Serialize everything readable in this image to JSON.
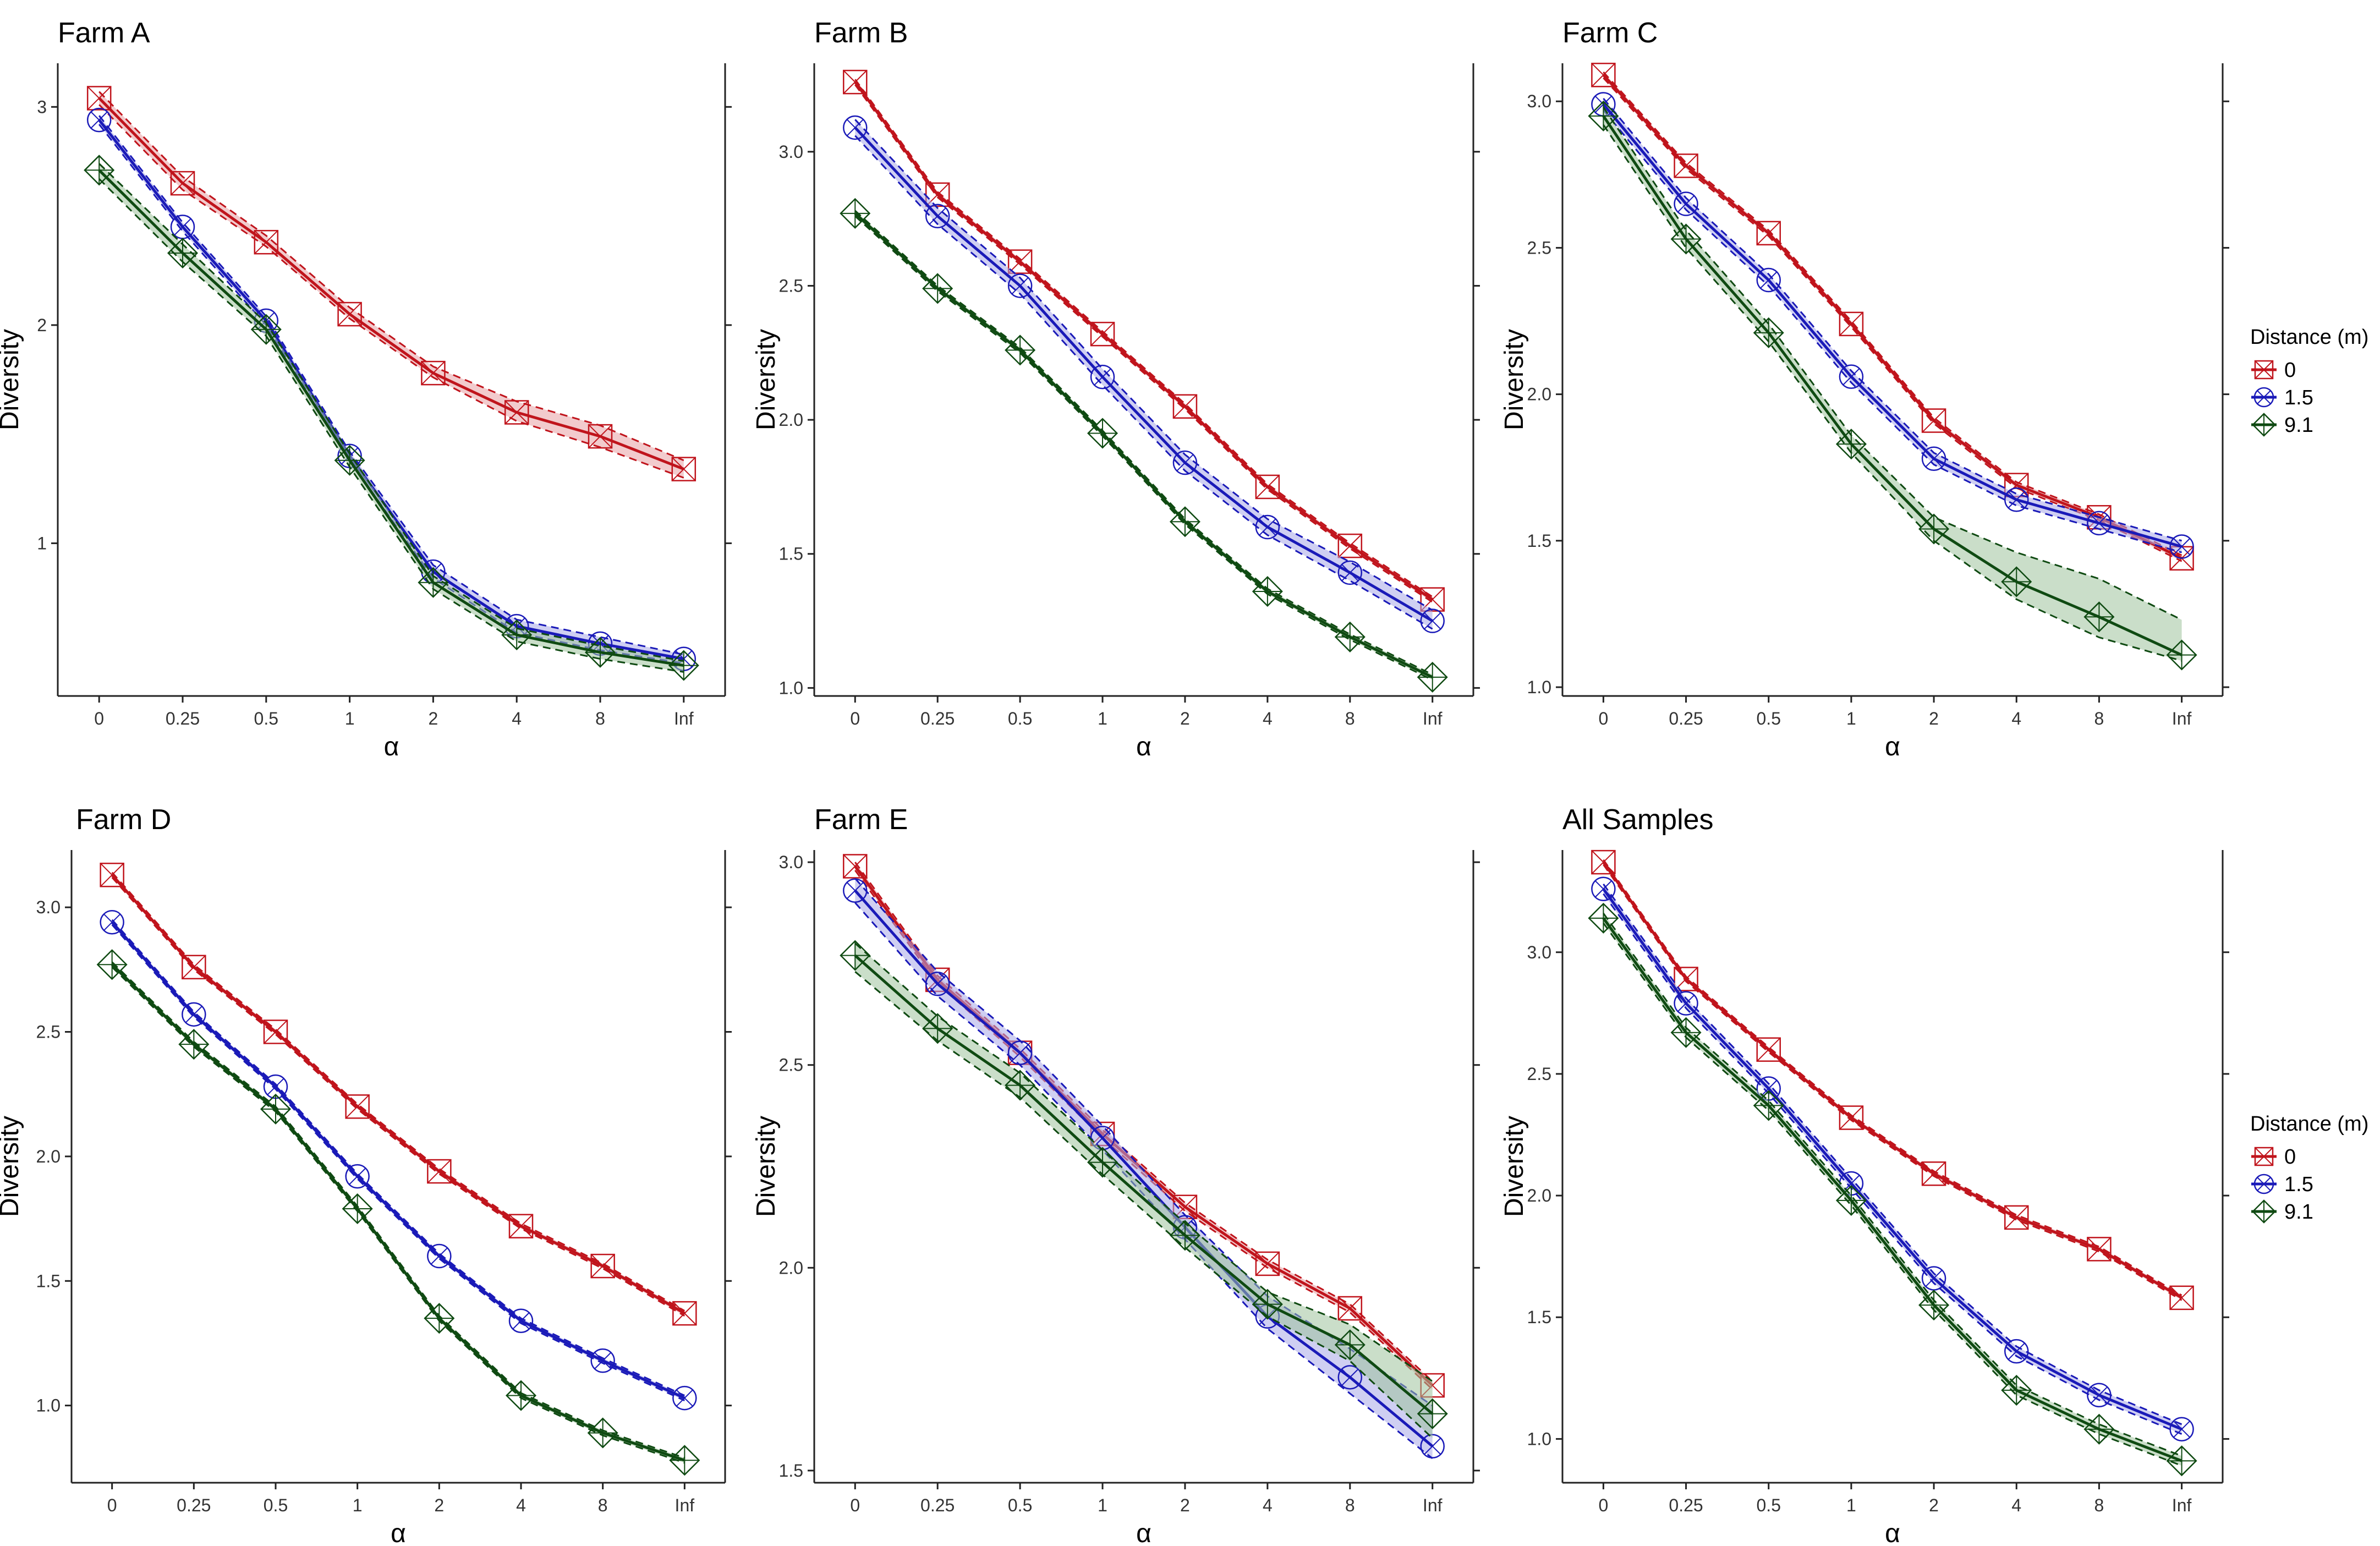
{
  "colors": {
    "d0": "#c0141c",
    "d15": "#1a1ab8",
    "d91": "#0f4a12",
    "d0_fill": "#e8a0a4",
    "d15_fill": "#a8a8e8",
    "d91_fill": "#9ec39c"
  },
  "legend": {
    "title": "Distance (m)",
    "entries": [
      "0",
      "1.5",
      "9.1"
    ]
  },
  "chart_data": [
    {
      "type": "line",
      "title": "Farm A",
      "xlabel": "α",
      "ylabel": "Diversity",
      "categories": [
        "0",
        "0.25",
        "0.5",
        "1",
        "2",
        "4",
        "8",
        "Inf"
      ],
      "ylim": [
        0.3,
        3.2
      ],
      "yticks": [
        "1",
        "2",
        "3"
      ],
      "ytick_values": [
        1,
        2,
        3
      ],
      "series": [
        {
          "name": "0",
          "values": [
            3.04,
            2.65,
            2.38,
            2.05,
            1.78,
            1.6,
            1.49,
            1.34
          ],
          "lower": [
            3.01,
            2.62,
            2.36,
            2.03,
            1.76,
            1.56,
            1.44,
            1.3
          ],
          "upper": [
            3.07,
            2.68,
            2.41,
            2.08,
            1.81,
            1.65,
            1.54,
            1.38
          ]
        },
        {
          "name": "1.5",
          "values": [
            2.94,
            2.45,
            2.02,
            1.4,
            0.87,
            0.62,
            0.54,
            0.47
          ],
          "lower": [
            2.92,
            2.43,
            2.0,
            1.38,
            0.84,
            0.59,
            0.51,
            0.45
          ],
          "upper": [
            2.96,
            2.47,
            2.04,
            1.42,
            0.9,
            0.65,
            0.57,
            0.49
          ]
        },
        {
          "name": "9.1",
          "values": [
            2.71,
            2.33,
            1.98,
            1.38,
            0.82,
            0.58,
            0.5,
            0.44
          ],
          "lower": [
            2.67,
            2.29,
            1.95,
            1.35,
            0.79,
            0.55,
            0.47,
            0.41
          ],
          "upper": [
            2.74,
            2.37,
            2.01,
            1.41,
            0.85,
            0.61,
            0.53,
            0.46
          ]
        }
      ]
    },
    {
      "type": "line",
      "title": "Farm B",
      "xlabel": "α",
      "ylabel": "Diversity",
      "categories": [
        "0",
        "0.25",
        "0.5",
        "1",
        "2",
        "4",
        "8",
        "Inf"
      ],
      "ylim": [
        0.97,
        3.33
      ],
      "yticks": [
        "1.0",
        "1.5",
        "2.0",
        "2.5",
        "3.0"
      ],
      "ytick_values": [
        1.0,
        1.5,
        2.0,
        2.5,
        3.0
      ],
      "series": [
        {
          "name": "0",
          "values": [
            3.26,
            2.84,
            2.59,
            2.32,
            2.05,
            1.75,
            1.53,
            1.33
          ],
          "lower": [
            3.25,
            2.83,
            2.58,
            2.31,
            2.04,
            1.74,
            1.52,
            1.32
          ],
          "upper": [
            3.27,
            2.85,
            2.6,
            2.33,
            2.06,
            1.76,
            1.54,
            1.34
          ]
        },
        {
          "name": "1.5",
          "values": [
            3.09,
            2.76,
            2.5,
            2.16,
            1.84,
            1.6,
            1.43,
            1.25
          ],
          "lower": [
            3.06,
            2.73,
            2.47,
            2.13,
            1.81,
            1.57,
            1.4,
            1.22
          ],
          "upper": [
            3.12,
            2.79,
            2.53,
            2.19,
            1.87,
            1.63,
            1.47,
            1.29
          ]
        },
        {
          "name": "9.1",
          "values": [
            2.77,
            2.49,
            2.26,
            1.95,
            1.62,
            1.36,
            1.19,
            1.04
          ],
          "lower": [
            2.76,
            2.48,
            2.25,
            1.94,
            1.61,
            1.35,
            1.18,
            1.03
          ],
          "upper": [
            2.78,
            2.5,
            2.27,
            1.96,
            1.63,
            1.37,
            1.2,
            1.05
          ]
        }
      ]
    },
    {
      "type": "line",
      "title": "Farm C",
      "xlabel": "α",
      "ylabel": "Diversity",
      "categories": [
        "0",
        "0.25",
        "0.5",
        "1",
        "2",
        "4",
        "8",
        "Inf"
      ],
      "ylim": [
        0.97,
        3.13
      ],
      "yticks": [
        "1.0",
        "1.5",
        "2.0",
        "2.5",
        "3.0"
      ],
      "ytick_values": [
        1.0,
        1.5,
        2.0,
        2.5,
        3.0
      ],
      "series": [
        {
          "name": "0",
          "values": [
            3.09,
            2.78,
            2.55,
            2.24,
            1.91,
            1.69,
            1.58,
            1.44
          ],
          "lower": [
            3.08,
            2.77,
            2.54,
            2.23,
            1.9,
            1.68,
            1.57,
            1.43
          ],
          "upper": [
            3.1,
            2.79,
            2.56,
            2.25,
            1.92,
            1.7,
            1.59,
            1.45
          ]
        },
        {
          "name": "1.5",
          "values": [
            2.99,
            2.65,
            2.39,
            2.06,
            1.78,
            1.64,
            1.56,
            1.48
          ],
          "lower": [
            2.97,
            2.63,
            2.37,
            2.04,
            1.76,
            1.62,
            1.54,
            1.46
          ],
          "upper": [
            3.01,
            2.67,
            2.41,
            2.08,
            1.8,
            1.66,
            1.58,
            1.5
          ]
        },
        {
          "name": "9.1",
          "values": [
            2.95,
            2.53,
            2.21,
            1.83,
            1.54,
            1.36,
            1.24,
            1.11
          ],
          "lower": [
            2.92,
            2.5,
            2.18,
            1.8,
            1.5,
            1.3,
            1.17,
            1.09
          ],
          "upper": [
            2.98,
            2.56,
            2.24,
            1.86,
            1.58,
            1.46,
            1.37,
            1.23
          ]
        }
      ]
    },
    {
      "type": "line",
      "title": "Farm D",
      "xlabel": "α",
      "ylabel": "Diversity",
      "categories": [
        "0",
        "0.25",
        "0.5",
        "1",
        "2",
        "4",
        "8",
        "Inf"
      ],
      "ylim": [
        0.69,
        3.23
      ],
      "yticks": [
        "1.0",
        "1.5",
        "2.0",
        "2.5",
        "3.0"
      ],
      "ytick_values": [
        1.0,
        1.5,
        2.0,
        2.5,
        3.0
      ],
      "series": [
        {
          "name": "0",
          "values": [
            3.13,
            2.76,
            2.5,
            2.2,
            1.94,
            1.72,
            1.56,
            1.37
          ],
          "lower": [
            3.12,
            2.75,
            2.49,
            2.19,
            1.93,
            1.71,
            1.55,
            1.36
          ],
          "upper": [
            3.14,
            2.77,
            2.51,
            2.21,
            1.95,
            1.73,
            1.57,
            1.38
          ]
        },
        {
          "name": "1.5",
          "values": [
            2.94,
            2.57,
            2.28,
            1.92,
            1.6,
            1.34,
            1.18,
            1.03
          ],
          "lower": [
            2.93,
            2.56,
            2.27,
            1.91,
            1.59,
            1.33,
            1.17,
            1.02
          ],
          "upper": [
            2.95,
            2.58,
            2.29,
            1.93,
            1.61,
            1.35,
            1.19,
            1.04
          ]
        },
        {
          "name": "9.1",
          "values": [
            2.77,
            2.45,
            2.19,
            1.79,
            1.35,
            1.04,
            0.89,
            0.78
          ],
          "lower": [
            2.76,
            2.44,
            2.18,
            1.78,
            1.34,
            1.03,
            0.88,
            0.77
          ],
          "upper": [
            2.78,
            2.46,
            2.2,
            1.8,
            1.36,
            1.05,
            0.9,
            0.79
          ]
        }
      ]
    },
    {
      "type": "line",
      "title": "Farm E",
      "xlabel": "α",
      "ylabel": "Diversity",
      "categories": [
        "0",
        "0.25",
        "0.5",
        "1",
        "2",
        "4",
        "8",
        "Inf"
      ],
      "ylim": [
        1.47,
        3.03
      ],
      "yticks": [
        "1.5",
        "2.0",
        "2.5",
        "3.0"
      ],
      "ytick_values": [
        1.5,
        2.0,
        2.5,
        3.0
      ],
      "series": [
        {
          "name": "0",
          "values": [
            2.99,
            2.71,
            2.53,
            2.33,
            2.15,
            2.01,
            1.9,
            1.71
          ],
          "lower": [
            2.98,
            2.7,
            2.52,
            2.32,
            2.14,
            2.0,
            1.89,
            1.7
          ],
          "upper": [
            3.0,
            2.72,
            2.54,
            2.34,
            2.16,
            2.02,
            1.91,
            1.72
          ]
        },
        {
          "name": "1.5",
          "values": [
            2.93,
            2.7,
            2.53,
            2.32,
            2.1,
            1.88,
            1.73,
            1.56
          ],
          "lower": [
            2.9,
            2.67,
            2.5,
            2.29,
            2.07,
            1.85,
            1.69,
            1.53
          ],
          "upper": [
            2.96,
            2.73,
            2.56,
            2.35,
            2.13,
            1.93,
            1.8,
            1.66
          ]
        },
        {
          "name": "9.1",
          "values": [
            2.77,
            2.59,
            2.45,
            2.26,
            2.08,
            1.91,
            1.81,
            1.64
          ],
          "lower": [
            2.73,
            2.56,
            2.42,
            2.23,
            2.05,
            1.88,
            1.77,
            1.58
          ],
          "upper": [
            2.8,
            2.62,
            2.48,
            2.29,
            2.11,
            1.94,
            1.86,
            1.72
          ]
        }
      ]
    },
    {
      "type": "line",
      "title": "All Samples",
      "xlabel": "α",
      "ylabel": "Diversity",
      "categories": [
        "0",
        "0.25",
        "0.5",
        "1",
        "2",
        "4",
        "8",
        "Inf"
      ],
      "ylim": [
        0.82,
        3.42
      ],
      "yticks": [
        "1.0",
        "1.5",
        "2.0",
        "2.5",
        "3.0"
      ],
      "ytick_values": [
        1.0,
        1.5,
        2.0,
        2.5,
        3.0
      ],
      "series": [
        {
          "name": "0",
          "values": [
            3.37,
            2.89,
            2.6,
            2.32,
            2.09,
            1.91,
            1.78,
            1.58
          ],
          "lower": [
            3.36,
            2.88,
            2.59,
            2.31,
            2.08,
            1.9,
            1.77,
            1.57
          ],
          "upper": [
            3.38,
            2.9,
            2.61,
            2.33,
            2.1,
            1.92,
            1.79,
            1.59
          ]
        },
        {
          "name": "1.5",
          "values": [
            3.26,
            2.79,
            2.44,
            2.05,
            1.66,
            1.36,
            1.18,
            1.04
          ],
          "lower": [
            3.24,
            2.77,
            2.42,
            2.03,
            1.64,
            1.34,
            1.16,
            1.02
          ],
          "upper": [
            3.28,
            2.81,
            2.46,
            2.07,
            1.68,
            1.38,
            1.2,
            1.06
          ]
        },
        {
          "name": "9.1",
          "values": [
            3.14,
            2.67,
            2.37,
            1.98,
            1.55,
            1.2,
            1.04,
            0.91
          ],
          "lower": [
            3.12,
            2.65,
            2.35,
            1.96,
            1.53,
            1.18,
            1.02,
            0.89
          ],
          "upper": [
            3.16,
            2.69,
            2.39,
            2.0,
            1.57,
            1.22,
            1.06,
            0.93
          ]
        }
      ]
    }
  ]
}
